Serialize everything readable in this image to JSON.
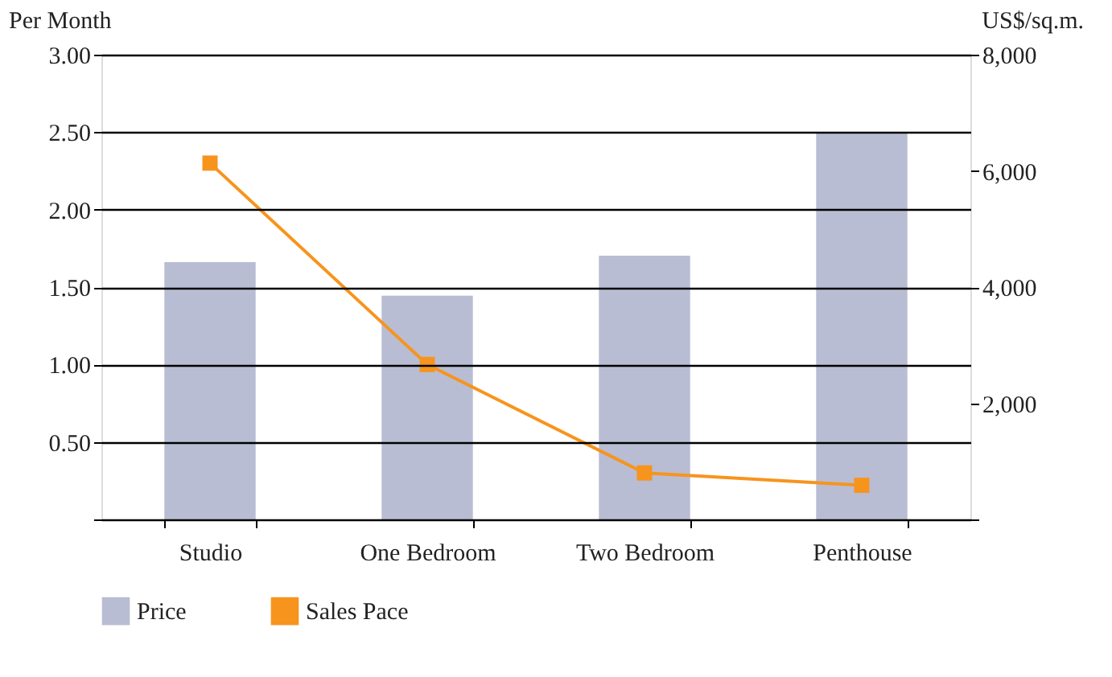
{
  "chart_data": {
    "type": "bar",
    "categories": [
      "Studio",
      "One Bedroom",
      "Two Bedroom",
      "Penthouse"
    ],
    "ylabel": "Per Month",
    "y2label": "US$/sq.m.",
    "series": [
      {
        "name": "Price",
        "axis": "y2",
        "color": "#b8bdd3",
        "values": [
          4430,
          3850,
          4540,
          6670
        ]
      },
      {
        "name": "Sales Pace",
        "type": "line",
        "axis": "y",
        "color": "#f7941d",
        "marker": "square",
        "values": [
          2.3,
          1.0,
          0.3,
          0.22
        ]
      }
    ],
    "ylim": [
      0,
      3
    ],
    "yticks": [
      {
        "value": 0,
        "label": null
      },
      {
        "value": 0.5,
        "label": "0.50"
      },
      {
        "value": 1,
        "label": "1.00"
      },
      {
        "value": 1.5,
        "label": "1.50"
      },
      {
        "value": 2,
        "label": "2.00"
      },
      {
        "value": 2.5,
        "label": "2.50"
      },
      {
        "value": 3,
        "label": "3.00"
      }
    ],
    "y2lim": [
      0,
      8000
    ],
    "y2ticks": [
      {
        "value": 0,
        "label": null
      },
      {
        "value": 2000,
        "label": "2,000"
      },
      {
        "value": 4000,
        "label": "4,000"
      },
      {
        "value": 6000,
        "label": "6,000"
      },
      {
        "value": 8000,
        "label": "8,000"
      }
    ],
    "grid": "y",
    "legend": "bottom"
  }
}
